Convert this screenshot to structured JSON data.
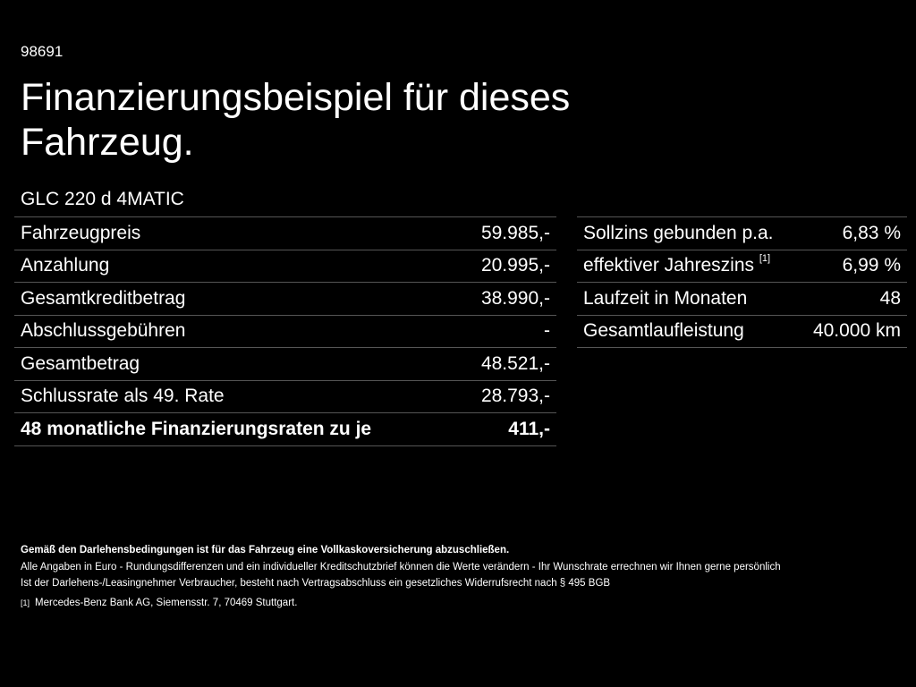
{
  "code": "98691",
  "title": "Finanzierungsbeispiel für dieses Fahrzeug.",
  "model": "GLC 220 d 4MATIC",
  "left_rows": [
    {
      "label": "Fahrzeugpreis",
      "value": "59.985,-"
    },
    {
      "label": "Anzahlung",
      "value": "20.995,-"
    },
    {
      "label": "Gesamtkreditbetrag",
      "value": "38.990,-"
    },
    {
      "label": "Abschlussgebühren",
      "value": "-"
    },
    {
      "label": "Gesamtbetrag",
      "value": "48.521,-"
    },
    {
      "label": "Schlussrate als 49. Rate",
      "value": "28.793,-"
    },
    {
      "label": "48 monatliche Finanzierungsraten zu je",
      "value": "411,-"
    }
  ],
  "right_rows": [
    {
      "label": "Sollzins gebunden p.a.",
      "value": "6,83 %"
    },
    {
      "label": "effektiver Jahreszins",
      "sup": "[1]",
      "value": "6,99 %"
    },
    {
      "label": "Laufzeit in Monaten",
      "value": "48"
    },
    {
      "label": "Gesamtlaufleistung",
      "value": "40.000 km"
    }
  ],
  "notes": {
    "insurance": "Gemäß den Darlehensbedingungen ist für das Fahrzeug eine Vollkaskoversicherung abzuschließen.",
    "euro": "Alle Angaben in Euro - Rundungsdifferenzen und ein individueller Kreditschutzbrief können die Werte verändern - Ihr Wunschrate errechnen wir Ihnen gerne persönlich",
    "withdrawal": "Ist der Darlehens-/Leasingnehmer Verbraucher, besteht nach Vertragsabschluss ein gesetzliches Widerrufsrecht nach § 495 BGB",
    "footnote_mark": "[1]",
    "footnote": "Mercedes-Benz Bank AG, Siemensstr. 7, 70469 Stuttgart."
  }
}
